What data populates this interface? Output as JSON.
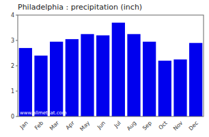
{
  "chart_data": {
    "type": "bar",
    "title": "Philadelphia : precipitation (inch)",
    "categories": [
      "Jan",
      "Feb",
      "Mar",
      "Apr",
      "May",
      "Jun",
      "Jul",
      "Aug",
      "Sep",
      "Oct",
      "Nov",
      "Dec"
    ],
    "values": [
      2.7,
      2.4,
      2.95,
      3.05,
      3.25,
      3.2,
      3.7,
      3.25,
      2.95,
      2.2,
      2.25,
      2.9
    ],
    "color": "#0000EE",
    "ylim": [
      0,
      4
    ],
    "yticks": [
      0,
      1,
      2,
      3,
      4
    ],
    "grid": false,
    "annotation": "www.allmetsat.com"
  }
}
